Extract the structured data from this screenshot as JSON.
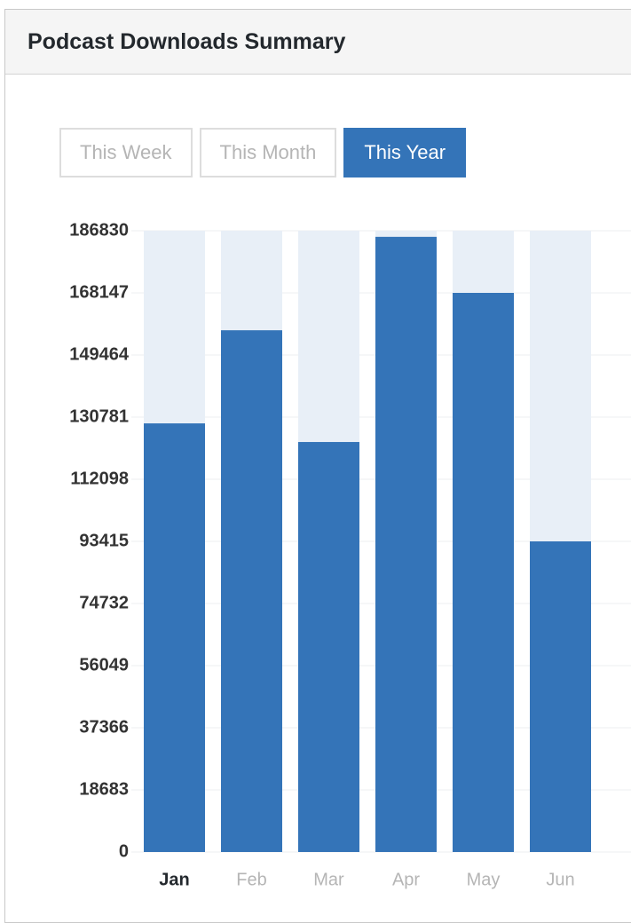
{
  "panel_title": "Podcast Downloads Summary",
  "tabs": [
    {
      "label": "This Week",
      "active": false
    },
    {
      "label": "This Month",
      "active": false
    },
    {
      "label": "This Year",
      "active": true
    }
  ],
  "chart_data": {
    "type": "bar",
    "categories": [
      "Jan",
      "Feb",
      "Mar",
      "Apr",
      "May",
      "Jun"
    ],
    "values": [
      128900,
      156900,
      123300,
      185000,
      168147,
      93415
    ],
    "highlight_category": "Jan",
    "color": "#3474b8",
    "track_color": "#e8eff7",
    "ylim": [
      0,
      186830
    ],
    "yticks": [
      0,
      18683,
      37366,
      56049,
      74732,
      93415,
      112098,
      130781,
      149464,
      168147,
      186830
    ],
    "grid": true
  }
}
